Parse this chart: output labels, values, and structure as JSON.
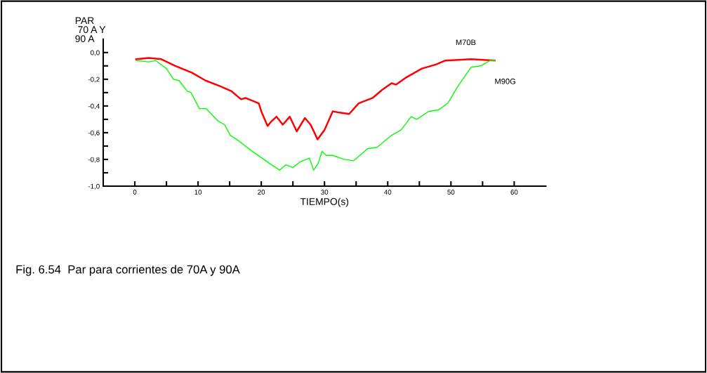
{
  "chart_data": {
    "type": "line",
    "ylabel": "PAR\n 70 A Y\n90 A",
    "xlabel": "TIEMPO(s)",
    "annotations": [
      "Fig. 6.54  Par para corrientes de 70A y 90A"
    ],
    "xlim": [
      -5,
      65
    ],
    "xticks": [
      0,
      {
        "value": 5,
        "label": null
      },
      10,
      {
        "value": 15,
        "label": null
      },
      20,
      {
        "value": 25,
        "label": null
      },
      30,
      {
        "value": 35,
        "label": null
      },
      40,
      {
        "value": 45,
        "label": null
      },
      50,
      {
        "value": 55,
        "label": null
      },
      60
    ],
    "ylim": [
      -1.0,
      0.1
    ],
    "yticks": [
      {
        "value": 0.0,
        "label": "0,0"
      },
      {
        "value": -0.1,
        "label": null
      },
      {
        "value": -0.2,
        "label": "-0,2"
      },
      {
        "value": -0.3,
        "label": null
      },
      {
        "value": -0.4,
        "label": "-0,4"
      },
      {
        "value": -0.5,
        "label": null
      },
      {
        "value": -0.6,
        "label": "-0,6"
      },
      {
        "value": -0.7,
        "label": null
      },
      {
        "value": -0.8,
        "label": "-0,8"
      },
      {
        "value": -0.9,
        "label": null
      },
      {
        "value": -1.0,
        "label": "-1,0"
      }
    ],
    "grid": false,
    "legend": false,
    "series": [
      {
        "name": "M70B",
        "color": "#ff0000",
        "x": [
          0.2,
          2.2,
          4.2,
          6.4,
          9.0,
          11.2,
          13.4,
          15.3,
          16.8,
          17.5,
          19.6,
          20.0,
          21.0,
          21.5,
          22.4,
          23.4,
          24.5,
          25.6,
          26.9,
          27.8,
          28.9,
          30.0,
          31.3,
          32.4,
          33.9,
          35.4,
          37.6,
          39.1,
          40.6,
          41.3,
          42.8,
          45.4,
          47.6,
          49.1,
          53.2,
          56.9
        ],
        "values": [
          -0.05,
          -0.04,
          -0.05,
          -0.1,
          -0.15,
          -0.21,
          -0.25,
          -0.29,
          -0.35,
          -0.34,
          -0.38,
          -0.44,
          -0.55,
          -0.52,
          -0.48,
          -0.54,
          -0.48,
          -0.59,
          -0.49,
          -0.54,
          -0.65,
          -0.58,
          -0.44,
          -0.45,
          -0.46,
          -0.38,
          -0.34,
          -0.28,
          -0.23,
          -0.24,
          -0.19,
          -0.12,
          -0.09,
          -0.06,
          -0.05,
          -0.06
        ]
      },
      {
        "name": "M90G",
        "color": "#00ff00",
        "x": [
          0.2,
          2.2,
          3.3,
          5.0,
          6.1,
          7.0,
          8.3,
          8.9,
          10.2,
          11.3,
          13.1,
          14.2,
          15.1,
          16.4,
          18.3,
          19.8,
          21.3,
          22.9,
          23.9,
          25.0,
          26.1,
          27.6,
          28.3,
          29.0,
          29.6,
          30.3,
          31.3,
          33.1,
          34.6,
          36.8,
          38.3,
          40.6,
          42.1,
          43.7,
          44.6,
          46.5,
          48.0,
          49.5,
          51.0,
          53.2,
          54.7,
          56.2,
          56.9
        ],
        "values": [
          -0.06,
          -0.07,
          -0.06,
          -0.12,
          -0.2,
          -0.21,
          -0.29,
          -0.3,
          -0.42,
          -0.42,
          -0.51,
          -0.54,
          -0.62,
          -0.66,
          -0.73,
          -0.78,
          -0.83,
          -0.88,
          -0.84,
          -0.86,
          -0.82,
          -0.79,
          -0.88,
          -0.83,
          -0.74,
          -0.77,
          -0.77,
          -0.8,
          -0.81,
          -0.72,
          -0.71,
          -0.62,
          -0.58,
          -0.48,
          -0.5,
          -0.44,
          -0.43,
          -0.38,
          -0.26,
          -0.11,
          -0.1,
          -0.06,
          -0.06
        ]
      }
    ]
  }
}
